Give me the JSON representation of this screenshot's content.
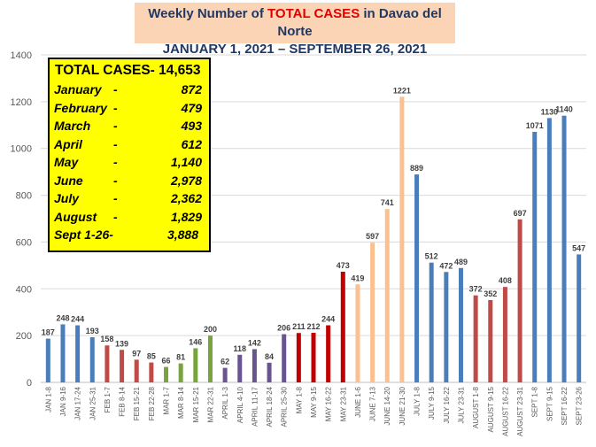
{
  "title": {
    "line1_prefix": "Weekly Number of ",
    "line1_highlight": "TOTAL CASES",
    "line1_suffix": " in Davao del Norte",
    "line2": "JANUARY 1, 2021 – SEPTEMBER 26, 2021"
  },
  "summary": {
    "total": "TOTAL CASES- 14,653",
    "rows": [
      {
        "month": "January",
        "dash": "-",
        "value": "872"
      },
      {
        "month": "February",
        "dash": "-",
        "value": "479"
      },
      {
        "month": "March",
        "dash": "-",
        "value": "493"
      },
      {
        "month": "April",
        "dash": "-",
        "value": "612"
      },
      {
        "month": "May",
        "dash": "-",
        "value": "1,140"
      },
      {
        "month": "June",
        "dash": "-",
        "value": "2,978"
      },
      {
        "month": "July",
        "dash": "-",
        "value": "2,362"
      },
      {
        "month": "August",
        "dash": "-",
        "value": "1,829"
      },
      {
        "month": "Sept 1-26-",
        "dash": "",
        "value": "3,888"
      }
    ]
  },
  "chart_data": {
    "type": "bar",
    "title": "Weekly Number of TOTAL CASES in Davao del Norte JANUARY 1, 2021 – SEPTEMBER 26, 2021",
    "xlabel": "",
    "ylabel": "",
    "ylim": [
      0,
      1400
    ],
    "yticks": [
      0,
      200,
      400,
      600,
      800,
      1000,
      1200,
      1400
    ],
    "grid": true,
    "legend": "none",
    "month_colors": {
      "jan": "#4a7ebb",
      "feb": "#be4b48",
      "mar": "#7aa33f",
      "apr": "#6a548f",
      "may": "#c00000",
      "jun": "#fac090",
      "jul": "#4a7ebb",
      "aug": "#be4b48",
      "sep": "#4a7ebb"
    },
    "bars": [
      {
        "label": "JAN 1-8",
        "value": 187,
        "month": "jan"
      },
      {
        "label": "JAN 9-16",
        "value": 248,
        "month": "jan"
      },
      {
        "label": "JAN 17-24",
        "value": 244,
        "month": "jan"
      },
      {
        "label": "JAN 25-31",
        "value": 193,
        "month": "jan"
      },
      {
        "label": "FEB 1-7",
        "value": 158,
        "month": "feb"
      },
      {
        "label": "FEB 8-14",
        "value": 139,
        "month": "feb"
      },
      {
        "label": "FEB 15-21",
        "value": 97,
        "month": "feb"
      },
      {
        "label": "FEB 22-28",
        "value": 85,
        "month": "feb"
      },
      {
        "label": "MAR 1-7",
        "value": 66,
        "month": "mar"
      },
      {
        "label": "MAR 8-14",
        "value": 81,
        "month": "mar"
      },
      {
        "label": "MAR 15-21",
        "value": 146,
        "month": "mar"
      },
      {
        "label": "MAR 22-31",
        "value": 200,
        "month": "mar"
      },
      {
        "label": "APRIL 1-3",
        "value": 62,
        "month": "apr"
      },
      {
        "label": "APRIL 4-10",
        "value": 118,
        "month": "apr"
      },
      {
        "label": "APRIL 11-17",
        "value": 142,
        "month": "apr"
      },
      {
        "label": "APRIL 18-24",
        "value": 84,
        "month": "apr"
      },
      {
        "label": "APRIL 25-30",
        "value": 206,
        "month": "apr"
      },
      {
        "label": "MAY 1-8",
        "value": 211,
        "month": "may"
      },
      {
        "label": "MAY 9-15",
        "value": 212,
        "month": "may"
      },
      {
        "label": "MAY 16-22",
        "value": 244,
        "month": "may"
      },
      {
        "label": "MAY 23-31",
        "value": 473,
        "month": "may"
      },
      {
        "label": "JUNE 1-6",
        "value": 419,
        "month": "jun"
      },
      {
        "label": "JUNE 7-13",
        "value": 597,
        "month": "jun"
      },
      {
        "label": "JUNE 14-20",
        "value": 741,
        "month": "jun"
      },
      {
        "label": "JUNE 21-30",
        "value": 1221,
        "month": "jun"
      },
      {
        "label": "JULY 1-8",
        "value": 889,
        "month": "jul"
      },
      {
        "label": "JULY 9-15",
        "value": 512,
        "month": "jul"
      },
      {
        "label": "JULY 16-22",
        "value": 472,
        "month": "jul"
      },
      {
        "label": "JULY 23-31",
        "value": 489,
        "month": "jul"
      },
      {
        "label": "AUGUST 1-8",
        "value": 372,
        "month": "aug"
      },
      {
        "label": "AUGUST 9-15",
        "value": 352,
        "month": "aug"
      },
      {
        "label": "AUGUST 16-22",
        "value": 408,
        "month": "aug"
      },
      {
        "label": "AUGUST 23-31",
        "value": 697,
        "month": "aug"
      },
      {
        "label": "SEPT 1-8",
        "value": 1071,
        "month": "sep"
      },
      {
        "label": "SEPT 9-15",
        "value": 1130,
        "month": "sep"
      },
      {
        "label": "SEPT 16-22",
        "value": 1140,
        "month": "sep"
      },
      {
        "label": "SEPT 23-26",
        "value": 547,
        "month": "sep"
      }
    ]
  }
}
